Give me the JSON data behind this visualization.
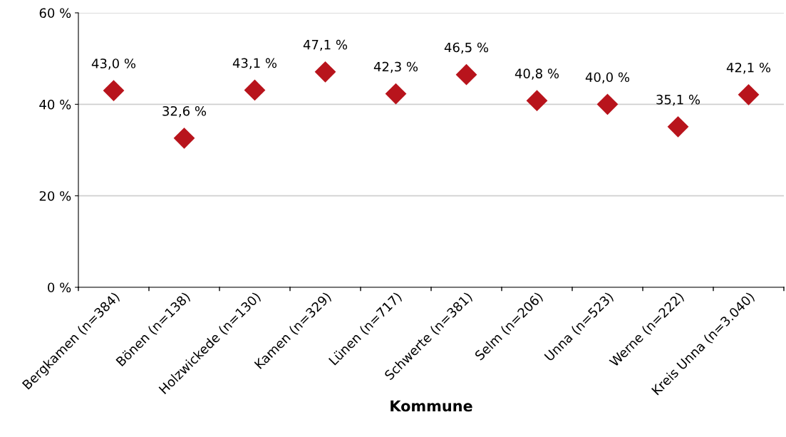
{
  "chart_data": {
    "type": "scatter",
    "xlabel": "Kommune",
    "categories": [
      "Bergkamen (n=384)",
      "Bönen (n=138)",
      "Holzwickede (n=130)",
      "Kamen (n=329)",
      "Lünen (n=717)",
      "Schwerte (n=381)",
      "Selm (n=206)",
      "Unna (n=523)",
      "Werne (n=222)",
      "Kreis Unna (n=3.040)"
    ],
    "series": [
      {
        "color": "#b8141c",
        "values": [
          43.0,
          32.6,
          43.1,
          47.1,
          42.3,
          46.5,
          40.8,
          40.0,
          35.1,
          42.1
        ],
        "value_labels": [
          "43,0 %",
          "32,6 %",
          "43,1 %",
          "47,1 %",
          "42,3 %",
          "46,5 %",
          "40,8 %",
          "40,0 %",
          "35,1 %",
          "42,1 %"
        ]
      }
    ],
    "ylim": [
      0,
      60
    ],
    "yticks": [
      {
        "value": 0,
        "label": "0 %"
      },
      {
        "value": 20,
        "label": "20 %"
      },
      {
        "value": 40,
        "label": "40 %"
      },
      {
        "value": 60,
        "label": "60 %"
      }
    ],
    "grid": "y",
    "marker": "diamond",
    "legend": false
  }
}
